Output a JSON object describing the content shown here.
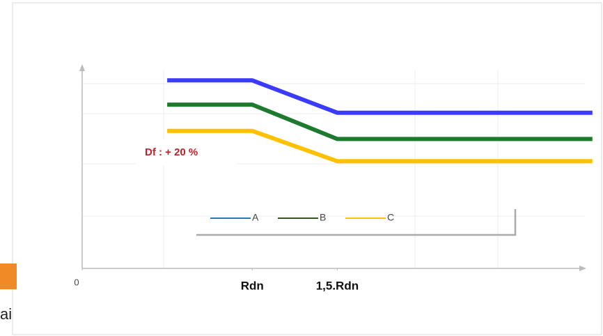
{
  "chart_data": {
    "type": "line",
    "annotation": "Df : + 20 %",
    "x": [
      0.5,
      1,
      1.5,
      3
    ],
    "xlim": [
      0,
      3.05
    ],
    "xticks": [
      0,
      {
        "value": 1,
        "label": "Rdn"
      },
      {
        "value": 1.5,
        "label": "1,5.Rdn"
      }
    ],
    "ylim": [
      0,
      100
    ],
    "legend": "bottom",
    "series": [
      {
        "name": "A",
        "color": "#3b3bff",
        "legend_color": "#2e75b6",
        "values": [
          93,
          93,
          77,
          77
        ]
      },
      {
        "name": "B",
        "color": "#1e7a2e",
        "legend_color": "#375623",
        "values": [
          81,
          81,
          64,
          64
        ]
      },
      {
        "name": "C",
        "color": "#ffc000",
        "legend_color": "#ffc000",
        "values": [
          68,
          68,
          53,
          53
        ]
      }
    ]
  },
  "fragment_text": "ai"
}
